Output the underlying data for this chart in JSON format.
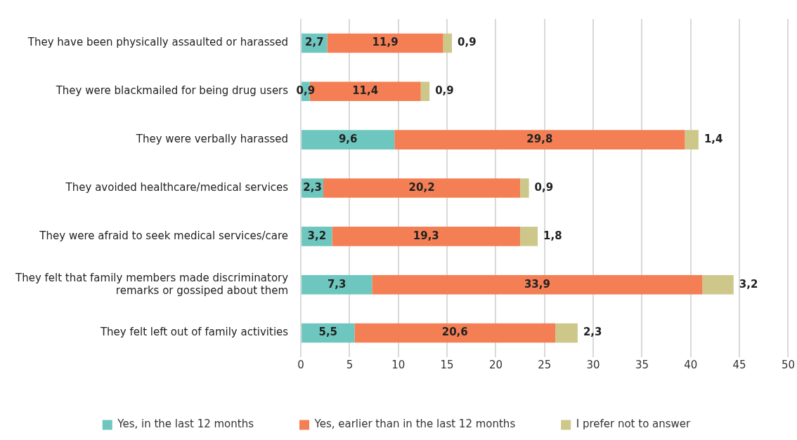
{
  "chart_data": {
    "type": "bar",
    "orientation": "horizontal",
    "stacked": true,
    "categories": [
      "They have been physically assaulted or harassed",
      "They were blackmailed for being drug users",
      "They were verbally harassed",
      "They avoided healthcare/medical services",
      "They were afraid to seek medical services/care",
      "They felt that family members made discriminatory remarks or gossiped about them",
      "They felt left out of family activities"
    ],
    "series": [
      {
        "name": "Yes, in the last 12 months",
        "color": "#6ec7bf",
        "values": [
          2.7,
          0.9,
          9.6,
          2.3,
          3.2,
          7.3,
          5.5
        ],
        "value_labels": [
          "2,7",
          "0,9",
          "9,6",
          "2,3",
          "3,2",
          "7,3",
          "5,5"
        ]
      },
      {
        "name": "Yes, earlier than in the last 12 months",
        "color": "#f47f55",
        "values": [
          11.9,
          11.4,
          29.8,
          20.2,
          19.3,
          33.9,
          20.6
        ],
        "value_labels": [
          "11,9",
          "11,4",
          "29,8",
          "20,2",
          "19,3",
          "33,9",
          "20,6"
        ]
      },
      {
        "name": "I prefer not to answer",
        "color": "#cdc88a",
        "values": [
          0.9,
          0.9,
          1.4,
          0.9,
          1.8,
          3.2,
          2.3
        ],
        "value_labels": [
          "0,9",
          "0,9",
          "1,4",
          "0,9",
          "1,8",
          "3,2",
          "2,3"
        ]
      }
    ],
    "xlim": [
      0,
      50
    ],
    "xticks": [
      0,
      5,
      10,
      15,
      20,
      25,
      30,
      35,
      40,
      45,
      50
    ],
    "grid": "x",
    "legend": "bottom"
  }
}
